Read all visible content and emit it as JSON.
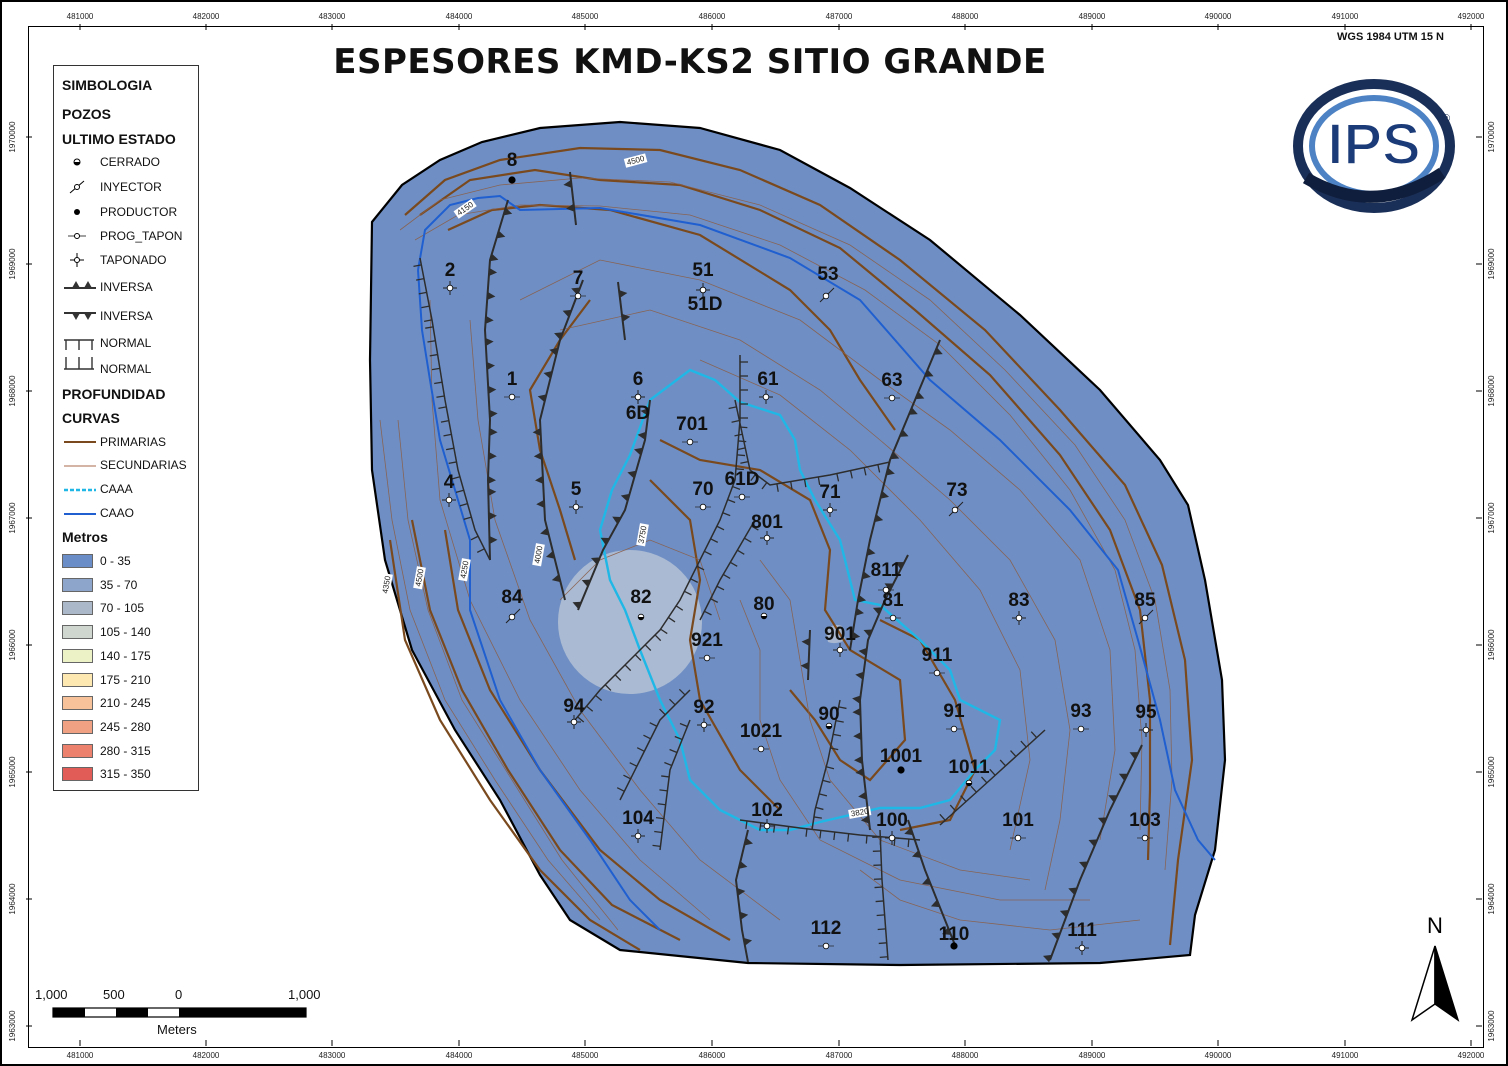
{
  "map": {
    "title": "ESPESORES KMD-KS2 SITIO GRANDE",
    "crs": "WGS 1984 UTM 15 N",
    "fill_color": "#6f8fc4",
    "x_ticks": [
      "481000",
      "482000",
      "483000",
      "484000",
      "485000",
      "486000",
      "487000",
      "488000",
      "489000",
      "490000",
      "491000",
      "492000"
    ],
    "y_ticks": [
      "1970000",
      "1969000",
      "1968000",
      "1967000",
      "1966000",
      "1965000",
      "1964000",
      "1963000"
    ],
    "contour_labels": [
      "4500",
      "4150",
      "3750",
      "4000",
      "4250",
      "4500",
      "4350",
      "3820"
    ],
    "wells": [
      {
        "label": "8",
        "status": "PRODUCTOR"
      },
      {
        "label": "2",
        "status": "TAPONADO"
      },
      {
        "label": "7",
        "status": "PROG_TAPON"
      },
      {
        "label": "51",
        "status": "TAPONADO"
      },
      {
        "label": "51D",
        "status": "TAPONADO"
      },
      {
        "label": "53",
        "status": "INYECTOR"
      },
      {
        "label": "1",
        "status": "PROG_TAPON"
      },
      {
        "label": "6",
        "status": "TAPONADO"
      },
      {
        "label": "6D",
        "status": "TAPONADO"
      },
      {
        "label": "61",
        "status": "TAPONADO"
      },
      {
        "label": "63",
        "status": "PROG_TAPON"
      },
      {
        "label": "701",
        "status": "PROG_TAPON"
      },
      {
        "label": "4",
        "status": "TAPONADO"
      },
      {
        "label": "5",
        "status": "TAPONADO"
      },
      {
        "label": "70",
        "status": "PROG_TAPON"
      },
      {
        "label": "61D",
        "status": "PROG_TAPON"
      },
      {
        "label": "71",
        "status": "TAPONADO"
      },
      {
        "label": "73",
        "status": "INYECTOR"
      },
      {
        "label": "801",
        "status": "TAPONADO"
      },
      {
        "label": "811",
        "status": "PROG_TAPON"
      },
      {
        "label": "84",
        "status": "INYECTOR"
      },
      {
        "label": "82",
        "status": "CERRADO"
      },
      {
        "label": "80",
        "status": "CERRADO"
      },
      {
        "label": "81",
        "status": "PROG_TAPON"
      },
      {
        "label": "83",
        "status": "TAPONADO"
      },
      {
        "label": "85",
        "status": "INYECTOR"
      },
      {
        "label": "901",
        "status": "TAPONADO"
      },
      {
        "label": "921",
        "status": "PROG_TAPON"
      },
      {
        "label": "911",
        "status": "PROG_TAPON"
      },
      {
        "label": "94",
        "status": "TAPONADO"
      },
      {
        "label": "92",
        "status": "TAPONADO"
      },
      {
        "label": "90",
        "status": "CERRADO"
      },
      {
        "label": "1021",
        "status": "PROG_TAPON"
      },
      {
        "label": "91",
        "status": "PROG_TAPON"
      },
      {
        "label": "93",
        "status": "PROG_TAPON"
      },
      {
        "label": "95",
        "status": "TAPONADO"
      },
      {
        "label": "1001",
        "status": "PRODUCTOR"
      },
      {
        "label": "1011",
        "status": "CERRADO"
      },
      {
        "label": "104",
        "status": "TAPONADO"
      },
      {
        "label": "102",
        "status": "TAPONADO"
      },
      {
        "label": "100",
        "status": "TAPONADO"
      },
      {
        "label": "101",
        "status": "PROG_TAPON"
      },
      {
        "label": "103",
        "status": "PROG_TAPON"
      },
      {
        "label": "112",
        "status": "PROG_TAPON"
      },
      {
        "label": "110",
        "status": "PRODUCTOR"
      },
      {
        "label": "111",
        "status": "TAPONADO"
      }
    ]
  },
  "legend": {
    "title": "SIMBOLOGIA",
    "wells_heading": "POZOS",
    "status_heading": "ULTIMO ESTADO",
    "well_items": [
      "CERRADO",
      "INYECTOR",
      "PRODUCTOR",
      "PROG_TAPON",
      "TAPONADO"
    ],
    "fault_items": [
      "INVERSA",
      "INVERSA",
      "NORMAL",
      "NORMAL"
    ],
    "depth_heading": "PROFUNDIDAD",
    "curves_heading": "CURVAS",
    "curve_items": [
      "PRIMARIAS",
      "SECUNDARIAS",
      "CAAA",
      "CAAO"
    ],
    "curve_colors": [
      "#7a4a1e",
      "#a86a4a",
      "#1fb8e6",
      "#1f5fd0"
    ],
    "meters_heading": "Metros",
    "classes": [
      {
        "label": "0 - 35",
        "color": "#6a8dc8"
      },
      {
        "label": "35 - 70",
        "color": "#8ea5cb"
      },
      {
        "label": "70 - 105",
        "color": "#aab8c9"
      },
      {
        "label": "105 - 140",
        "color": "#cfd6cf"
      },
      {
        "label": "140 - 175",
        "color": "#ecf2c6"
      },
      {
        "label": "175 - 210",
        "color": "#fde8b2"
      },
      {
        "label": "210 - 245",
        "color": "#f7c29a"
      },
      {
        "label": "245 - 280",
        "color": "#f1a183"
      },
      {
        "label": "280 - 315",
        "color": "#ec816e"
      },
      {
        "label": "315 - 350",
        "color": "#e15b57"
      }
    ]
  },
  "scalebar": {
    "labels": [
      "1,000",
      "500",
      "0",
      "1,000"
    ],
    "unit": "Meters"
  },
  "north": {
    "label": "N"
  },
  "logo": {
    "text": "IPS",
    "mark": "®"
  }
}
